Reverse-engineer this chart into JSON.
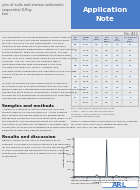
{
  "title_box_color": "#4a7cc7",
  "title_line1": "Application",
  "title_line2": "Note",
  "title_text_color": "#ffffff",
  "app_note_number": "No. A12",
  "page_background": "#e8e8e8",
  "content_background": "#f2f2f2",
  "logo_color": "#4a7cc7",
  "header_text_color": "#555555",
  "body_text_color": "#333333",
  "table_header_color": "#d0d8e8",
  "table_line_color": "#aaaaaa",
  "chart_line_color": "#444444"
}
